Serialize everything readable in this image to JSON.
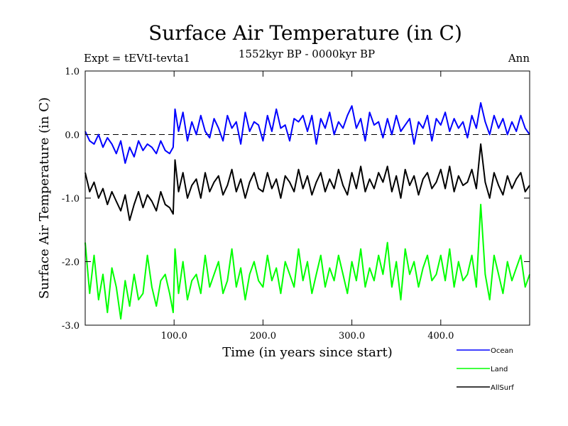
{
  "chart_data": {
    "type": "line",
    "title": "Surface Air Temperature (in C)",
    "experiment_label": "Expt = tEVtI-tevta1",
    "period_label": "1552kyr BP - 0000kyr BP",
    "season_label": "Ann",
    "xlabel": "Time (in years since start)",
    "ylabel": "Surface Air Temperature (in C)",
    "xlim": [
      0,
      500
    ],
    "ylim": [
      -3.0,
      1.0
    ],
    "x_ticks": [
      {
        "value": 100,
        "label": "100.0"
      },
      {
        "value": 200,
        "label": "200.0"
      },
      {
        "value": 300,
        "label": "300.0"
      },
      {
        "value": 400,
        "label": "400.0"
      }
    ],
    "y_ticks": [
      {
        "value": 1.0,
        "label": "1.0"
      },
      {
        "value": 0.0,
        "label": "0.0"
      },
      {
        "value": -1.0,
        "label": "-1.0"
      },
      {
        "value": -2.0,
        "label": "-2.0"
      },
      {
        "value": -3.0,
        "label": "-3.0"
      }
    ],
    "reference_line": {
      "value": 0.0,
      "style": "dashed"
    },
    "legend_position": "bottom-right, outside plot",
    "series": [
      {
        "name": "Ocean",
        "color": "#0000ff",
        "x": [
          0,
          5,
          10,
          15,
          20,
          25,
          30,
          35,
          40,
          45,
          50,
          55,
          60,
          65,
          70,
          75,
          80,
          85,
          90,
          95,
          99,
          101,
          105,
          110,
          115,
          120,
          125,
          130,
          135,
          140,
          145,
          150,
          155,
          160,
          165,
          170,
          175,
          180,
          185,
          190,
          195,
          200,
          205,
          210,
          215,
          220,
          225,
          230,
          235,
          240,
          245,
          250,
          255,
          260,
          265,
          270,
          275,
          280,
          285,
          290,
          295,
          300,
          305,
          310,
          315,
          320,
          325,
          330,
          335,
          340,
          345,
          350,
          355,
          360,
          365,
          370,
          375,
          380,
          385,
          390,
          395,
          400,
          405,
          410,
          415,
          420,
          425,
          430,
          435,
          440,
          445,
          450,
          455,
          460,
          465,
          470,
          475,
          480,
          485,
          490,
          495,
          500
        ],
        "values": [
          0.05,
          -0.1,
          -0.15,
          0.0,
          -0.2,
          -0.05,
          -0.15,
          -0.3,
          -0.1,
          -0.45,
          -0.2,
          -0.35,
          -0.1,
          -0.25,
          -0.15,
          -0.2,
          -0.3,
          -0.1,
          -0.25,
          -0.3,
          -0.2,
          0.4,
          0.05,
          0.35,
          -0.1,
          0.2,
          0.0,
          0.3,
          0.05,
          -0.05,
          0.25,
          0.1,
          -0.1,
          0.3,
          0.1,
          0.2,
          -0.15,
          0.35,
          0.05,
          0.2,
          0.15,
          -0.1,
          0.3,
          0.05,
          0.4,
          0.1,
          0.15,
          -0.1,
          0.25,
          0.2,
          0.3,
          0.05,
          0.3,
          -0.15,
          0.25,
          0.1,
          0.35,
          0.0,
          0.2,
          0.1,
          0.3,
          0.45,
          0.1,
          0.25,
          -0.1,
          0.35,
          0.15,
          0.2,
          -0.05,
          0.25,
          0.0,
          0.3,
          0.05,
          0.15,
          0.25,
          -0.15,
          0.2,
          0.1,
          0.3,
          -0.1,
          0.25,
          0.15,
          0.35,
          0.05,
          0.25,
          0.1,
          0.2,
          -0.05,
          0.3,
          0.1,
          0.5,
          0.2,
          0.0,
          0.3,
          0.1,
          0.25,
          0.0,
          0.2,
          0.05,
          0.3,
          0.1,
          0.0
        ]
      },
      {
        "name": "Land",
        "color": "#00ff00",
        "x": [
          0,
          5,
          10,
          15,
          20,
          25,
          30,
          35,
          40,
          45,
          50,
          55,
          60,
          65,
          70,
          75,
          80,
          85,
          90,
          95,
          99,
          101,
          105,
          110,
          115,
          120,
          125,
          130,
          135,
          140,
          145,
          150,
          155,
          160,
          165,
          170,
          175,
          180,
          185,
          190,
          195,
          200,
          205,
          210,
          215,
          220,
          225,
          230,
          235,
          240,
          245,
          250,
          255,
          260,
          265,
          270,
          275,
          280,
          285,
          290,
          295,
          300,
          305,
          310,
          315,
          320,
          325,
          330,
          335,
          340,
          345,
          350,
          355,
          360,
          365,
          370,
          375,
          380,
          385,
          390,
          395,
          400,
          405,
          410,
          415,
          420,
          425,
          430,
          435,
          440,
          445,
          450,
          455,
          460,
          465,
          470,
          475,
          480,
          485,
          490,
          495,
          500
        ],
        "values": [
          -1.7,
          -2.5,
          -1.9,
          -2.6,
          -2.2,
          -2.8,
          -2.1,
          -2.4,
          -2.9,
          -2.3,
          -2.7,
          -2.2,
          -2.6,
          -2.5,
          -1.9,
          -2.4,
          -2.7,
          -2.3,
          -2.2,
          -2.5,
          -2.8,
          -1.8,
          -2.5,
          -2.0,
          -2.6,
          -2.3,
          -2.2,
          -2.5,
          -1.9,
          -2.4,
          -2.2,
          -2.0,
          -2.5,
          -2.3,
          -1.8,
          -2.4,
          -2.1,
          -2.6,
          -2.2,
          -2.0,
          -2.3,
          -2.4,
          -1.9,
          -2.3,
          -2.1,
          -2.5,
          -2.0,
          -2.2,
          -2.4,
          -1.8,
          -2.3,
          -2.0,
          -2.5,
          -2.2,
          -1.9,
          -2.4,
          -2.1,
          -2.3,
          -1.9,
          -2.2,
          -2.5,
          -2.0,
          -2.3,
          -1.8,
          -2.4,
          -2.1,
          -2.3,
          -1.9,
          -2.2,
          -1.7,
          -2.4,
          -2.0,
          -2.6,
          -1.8,
          -2.2,
          -2.0,
          -2.4,
          -2.1,
          -1.9,
          -2.3,
          -2.2,
          -1.9,
          -2.3,
          -1.8,
          -2.4,
          -2.0,
          -2.3,
          -2.2,
          -1.9,
          -2.4,
          -1.1,
          -2.2,
          -2.6,
          -1.9,
          -2.2,
          -2.5,
          -2.0,
          -2.3,
          -2.1,
          -1.9,
          -2.4,
          -2.2
        ]
      },
      {
        "name": "AllSurf",
        "color": "#000000",
        "x": [
          0,
          5,
          10,
          15,
          20,
          25,
          30,
          35,
          40,
          45,
          50,
          55,
          60,
          65,
          70,
          75,
          80,
          85,
          90,
          95,
          99,
          101,
          105,
          110,
          115,
          120,
          125,
          130,
          135,
          140,
          145,
          150,
          155,
          160,
          165,
          170,
          175,
          180,
          185,
          190,
          195,
          200,
          205,
          210,
          215,
          220,
          225,
          230,
          235,
          240,
          245,
          250,
          255,
          260,
          265,
          270,
          275,
          280,
          285,
          290,
          295,
          300,
          305,
          310,
          315,
          320,
          325,
          330,
          335,
          340,
          345,
          350,
          355,
          360,
          365,
          370,
          375,
          380,
          385,
          390,
          395,
          400,
          405,
          410,
          415,
          420,
          425,
          430,
          435,
          440,
          445,
          450,
          455,
          460,
          465,
          470,
          475,
          480,
          485,
          490,
          495,
          500
        ],
        "values": [
          -0.6,
          -0.9,
          -0.75,
          -1.0,
          -0.85,
          -1.1,
          -0.9,
          -1.05,
          -1.2,
          -0.95,
          -1.35,
          -1.1,
          -0.9,
          -1.15,
          -0.95,
          -1.05,
          -1.2,
          -0.9,
          -1.1,
          -1.15,
          -1.25,
          -0.4,
          -0.9,
          -0.6,
          -1.0,
          -0.8,
          -0.7,
          -1.0,
          -0.6,
          -0.9,
          -0.75,
          -0.65,
          -0.95,
          -0.8,
          -0.55,
          -0.9,
          -0.7,
          -1.0,
          -0.75,
          -0.6,
          -0.85,
          -0.9,
          -0.6,
          -0.85,
          -0.7,
          -1.0,
          -0.65,
          -0.75,
          -0.9,
          -0.55,
          -0.85,
          -0.65,
          -0.95,
          -0.75,
          -0.6,
          -0.9,
          -0.7,
          -0.85,
          -0.55,
          -0.8,
          -0.95,
          -0.6,
          -0.85,
          -0.5,
          -0.9,
          -0.7,
          -0.85,
          -0.6,
          -0.75,
          -0.5,
          -0.9,
          -0.65,
          -1.0,
          -0.55,
          -0.8,
          -0.65,
          -0.95,
          -0.7,
          -0.6,
          -0.85,
          -0.75,
          -0.55,
          -0.85,
          -0.5,
          -0.9,
          -0.65,
          -0.8,
          -0.75,
          -0.55,
          -0.85,
          -0.15,
          -0.75,
          -1.0,
          -0.6,
          -0.8,
          -0.95,
          -0.65,
          -0.85,
          -0.7,
          -0.6,
          -0.9,
          -0.8
        ]
      }
    ]
  }
}
